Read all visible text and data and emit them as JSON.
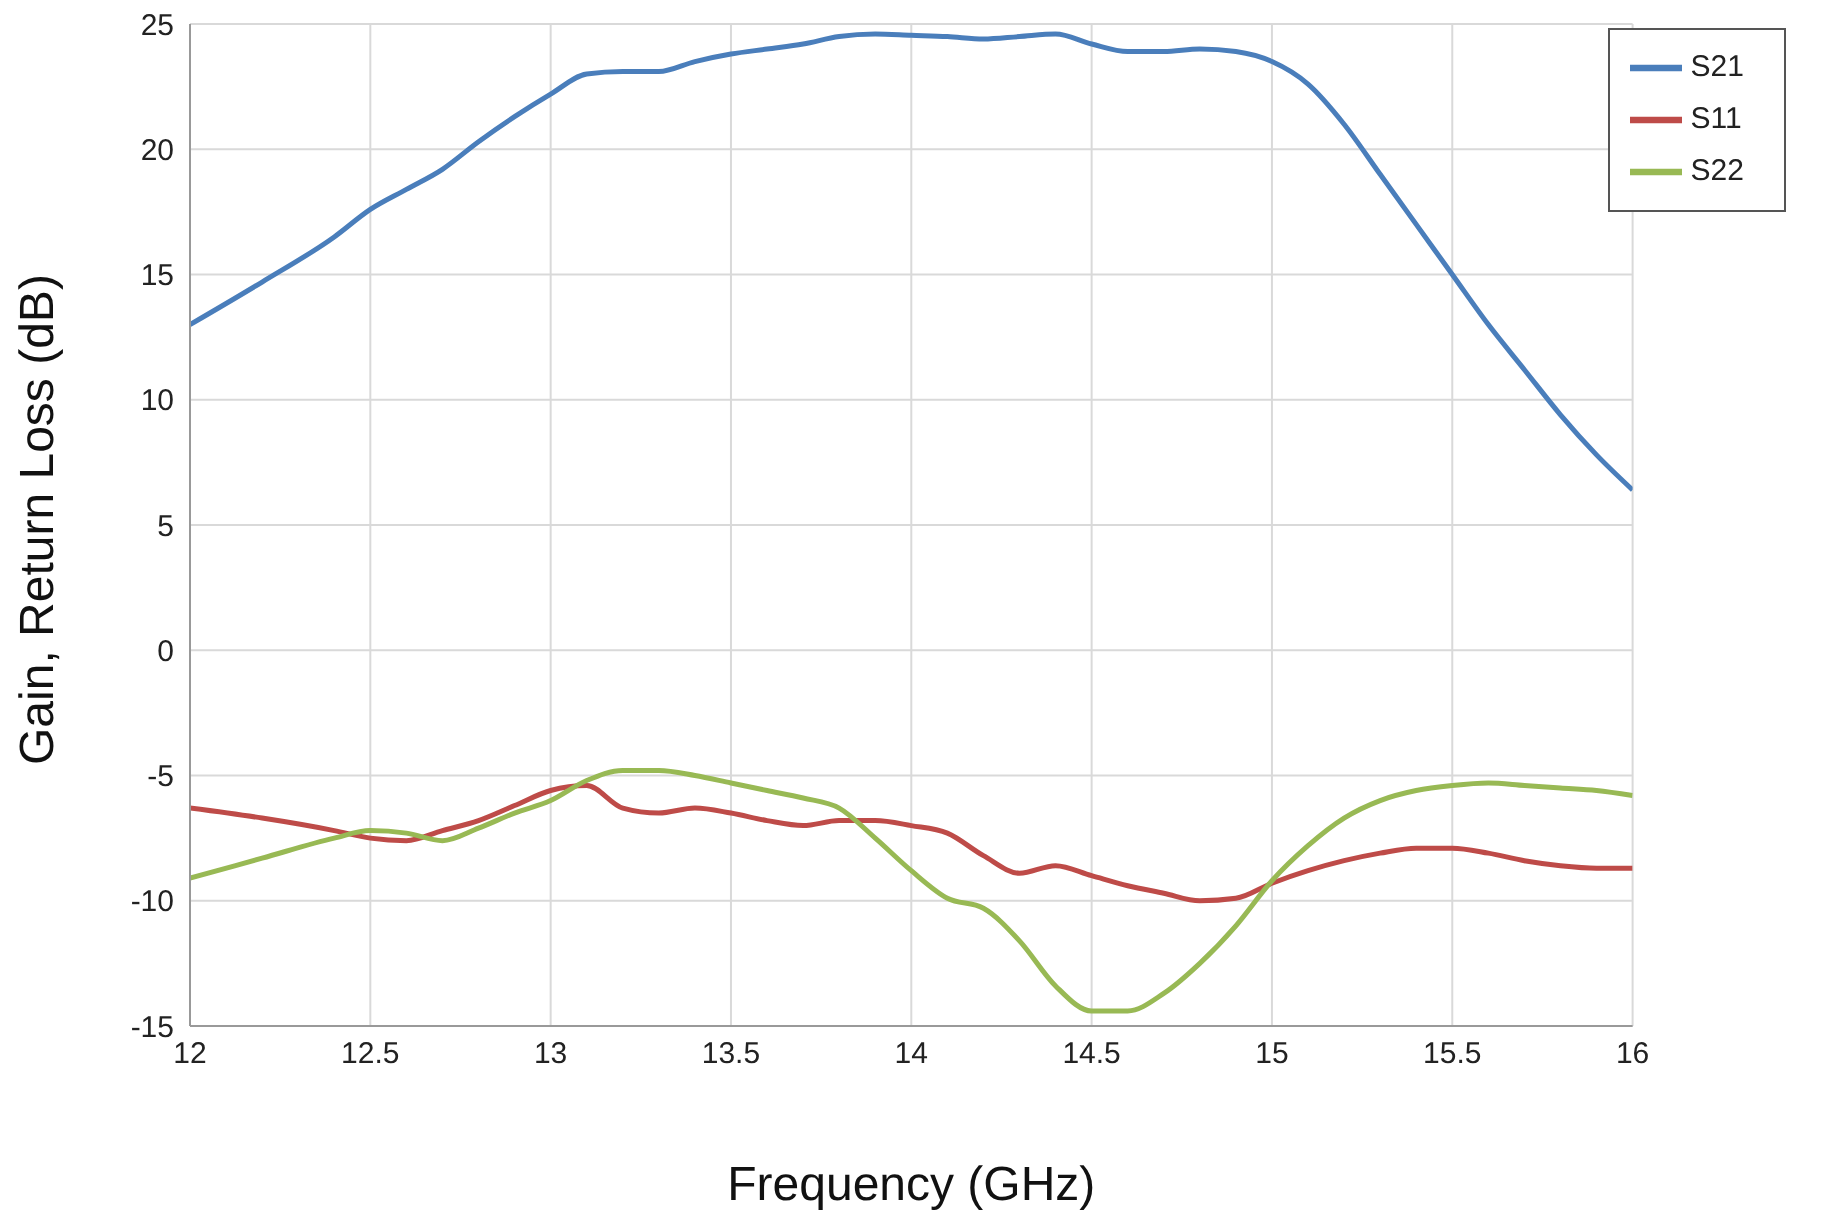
{
  "chart_data": {
    "type": "line",
    "xlabel": "Frequency (GHz)",
    "ylabel": "Gain, Return Loss (dB)",
    "x": [
      12.0,
      12.2,
      12.4,
      12.5,
      12.6,
      12.7,
      12.8,
      12.9,
      13.0,
      13.1,
      13.2,
      13.3,
      13.4,
      13.5,
      13.6,
      13.7,
      13.8,
      13.9,
      14.0,
      14.1,
      14.2,
      14.3,
      14.4,
      14.5,
      14.6,
      14.7,
      14.8,
      14.9,
      15.0,
      15.1,
      15.2,
      15.3,
      15.4,
      15.5,
      15.6,
      15.7,
      15.8,
      15.9,
      16.0
    ],
    "series": [
      {
        "name": "S21",
        "color": "#4a7ebb",
        "values": [
          13.0,
          14.7,
          16.5,
          17.6,
          18.4,
          19.2,
          20.3,
          21.3,
          22.2,
          23.0,
          23.1,
          23.1,
          23.5,
          23.8,
          24.0,
          24.2,
          24.5,
          24.6,
          24.55,
          24.5,
          24.4,
          24.5,
          24.6,
          24.2,
          23.9,
          23.9,
          24.0,
          23.9,
          23.5,
          22.6,
          21.0,
          19.0,
          17.0,
          15.0,
          13.0,
          11.2,
          9.4,
          7.8,
          6.4
        ]
      },
      {
        "name": "S11",
        "color": "#be4b48",
        "values": [
          -6.3,
          -6.7,
          -7.2,
          -7.5,
          -7.6,
          -7.2,
          -6.8,
          -6.2,
          -5.6,
          -5.4,
          -6.3,
          -6.5,
          -6.3,
          -6.5,
          -6.8,
          -7.0,
          -6.8,
          -6.8,
          -7.0,
          -7.3,
          -8.2,
          -8.9,
          -8.6,
          -9.0,
          -9.4,
          -9.7,
          -10.0,
          -9.9,
          -9.3,
          -8.8,
          -8.4,
          -8.1,
          -7.9,
          -7.9,
          -8.1,
          -8.4,
          -8.6,
          -8.7,
          -8.7
        ]
      },
      {
        "name": "S22",
        "color": "#98b954",
        "values": [
          -9.1,
          -8.3,
          -7.5,
          -7.2,
          -7.3,
          -7.6,
          -7.1,
          -6.5,
          -6.0,
          -5.2,
          -4.8,
          -4.8,
          -5.0,
          -5.3,
          -5.6,
          -5.9,
          -6.3,
          -7.5,
          -8.8,
          -9.9,
          -10.3,
          -11.6,
          -13.4,
          -14.4,
          -14.4,
          -13.7,
          -12.5,
          -11.0,
          -9.2,
          -7.8,
          -6.7,
          -6.0,
          -5.6,
          -5.4,
          -5.3,
          -5.4,
          -5.5,
          -5.6,
          -5.8
        ]
      }
    ],
    "xlim": [
      12,
      16
    ],
    "xticks": [
      12,
      12.5,
      13,
      13.5,
      14,
      14.5,
      15,
      15.5,
      16
    ],
    "ylim": [
      -15,
      25
    ],
    "yticks": [
      -15,
      -10,
      -5,
      0,
      5,
      10,
      15,
      20,
      25
    ],
    "grid": true,
    "legend": "top right",
    "marker": "none",
    "line_style": "solid"
  }
}
